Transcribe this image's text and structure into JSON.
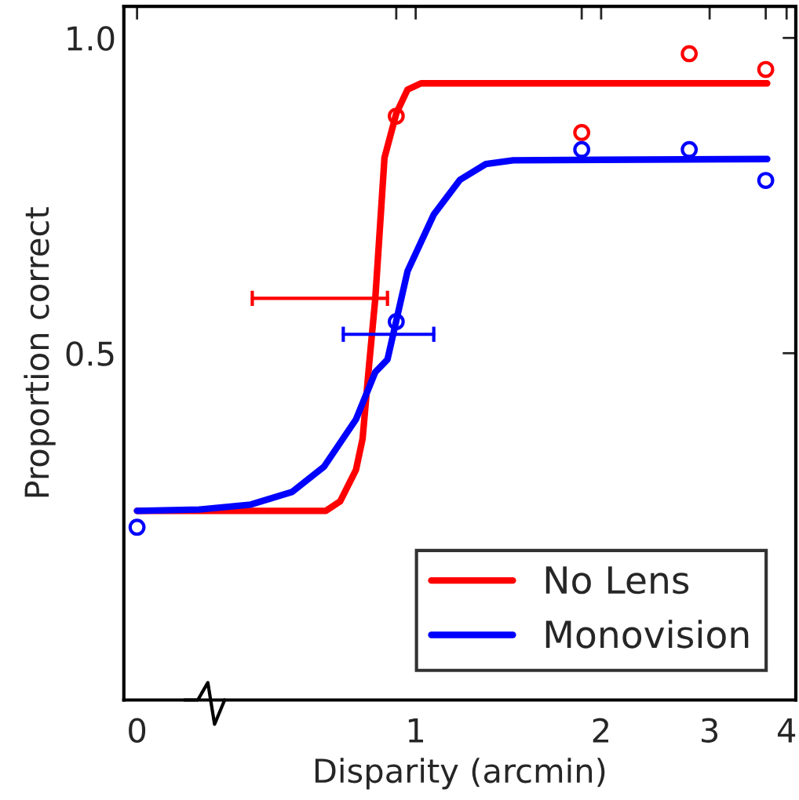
{
  "chart_data": {
    "type": "line",
    "xlabel": "Disparity (arcmin)",
    "ylabel": "Proportion correct",
    "log": "x",
    "xlim": [
      0.336,
      4.14
    ],
    "ylim": [
      -0.05,
      1.05
    ],
    "xticks": [
      {
        "value": 0.353,
        "label": "0"
      },
      {
        "value": 0.93,
        "label": null
      },
      1,
      {
        "value": 1.86,
        "label": null
      },
      2,
      3,
      {
        "value": 3.7,
        "label": null
      },
      4
    ],
    "yticks": [
      {
        "value": 0.5,
        "label": "0.5"
      },
      {
        "value": 1.0,
        "label": "1.0"
      }
    ],
    "grid": false,
    "legend": "bottom right",
    "series": [
      {
        "name": "No Lens",
        "color": "#ff0000",
        "x": [
          0.353,
          0.715,
          0.754,
          0.8,
          0.82,
          0.84,
          0.86,
          0.89,
          0.93,
          0.97,
          1.02,
          3.72
        ],
        "values": [
          0.25,
          0.25,
          0.265,
          0.315,
          0.364,
          0.48,
          0.587,
          0.81,
          0.88,
          0.918,
          0.928,
          0.928
        ]
      },
      {
        "name": "Monovision",
        "color": "#0000ff",
        "x": [
          0.353,
          0.445,
          0.54,
          0.63,
          0.71,
          0.8,
          0.86,
          0.9,
          0.97,
          1.07,
          1.18,
          1.3,
          1.44,
          3.72
        ],
        "values": [
          0.25,
          0.252,
          0.26,
          0.28,
          0.32,
          0.395,
          0.47,
          0.49,
          0.63,
          0.72,
          0.775,
          0.8,
          0.806,
          0.808
        ]
      },
      {
        "type": "scatter",
        "marker": "circle",
        "color": "#ff0000",
        "x": [
          0.93,
          1.86,
          2.78,
          3.7
        ],
        "values": [
          0.876,
          0.85,
          0.975,
          0.95
        ]
      },
      {
        "type": "scatter",
        "marker": "circle",
        "color": "#0000ff",
        "x": [
          0.353,
          0.93,
          1.86,
          2.78,
          3.7
        ],
        "values": [
          0.224,
          0.55,
          0.823,
          0.823,
          0.774
        ]
      },
      {
        "type": "line",
        "color": "#ff0000",
        "x": [
          0.543,
          0.9
        ],
        "values": [
          0.587,
          0.587
        ],
        "errors": [
          0.012,
          0.012
        ]
      },
      {
        "type": "line",
        "color": "#0000ff",
        "x": [
          0.763,
          1.07
        ],
        "values": [
          0.53,
          0.53
        ],
        "errors": [
          0.012,
          0.012
        ]
      }
    ]
  }
}
